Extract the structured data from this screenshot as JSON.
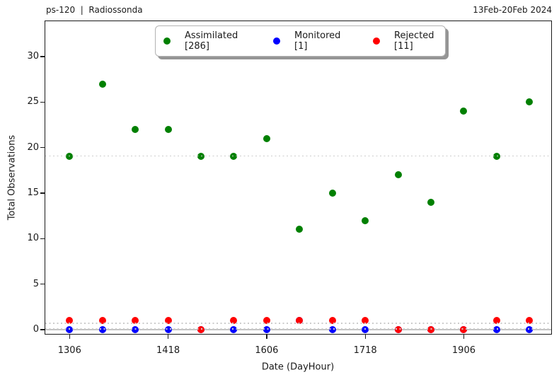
{
  "header": {
    "left_title": "ps-120  |  Radiossonda",
    "right_title": "13Feb-20Feb 2024"
  },
  "axes": {
    "ylabel": "Total Observations",
    "xlabel": "Date (DayHour)",
    "y_ticks": [
      0,
      5,
      10,
      15,
      20,
      25,
      30
    ],
    "x_tick_labels": [
      "1306",
      "1418",
      "1606",
      "1718",
      "1906"
    ],
    "x_tick_indices": [
      0,
      3,
      6,
      9,
      12
    ]
  },
  "legend": {
    "items": [
      {
        "label": "Assimilated",
        "count": "[286]",
        "color": "#008000"
      },
      {
        "label": "Monitored",
        "count": "[1]",
        "color": "#0000ff"
      },
      {
        "label": "Rejected",
        "count": "[11]",
        "color": "#ff0000"
      }
    ]
  },
  "chart_data": {
    "type": "scatter",
    "title": "ps-120 | Radiossonda",
    "subtitle_right": "13Feb-20Feb 2024",
    "xlabel": "Date (DayHour)",
    "ylabel": "Total Observations",
    "n_points": 15,
    "x_tick_labels": [
      "1306",
      "1418",
      "1606",
      "1718",
      "1906"
    ],
    "x_tick_indices": [
      0,
      3,
      6,
      9,
      12
    ],
    "ylim": [
      -0.5,
      34
    ],
    "grid": false,
    "legend_position": "upper center",
    "series": [
      {
        "name": "Assimilated",
        "total": 286,
        "color": "#008000",
        "values": [
          19,
          27,
          22,
          22,
          19,
          19,
          21,
          11,
          15,
          12,
          17,
          14,
          24,
          19,
          25
        ]
      },
      {
        "name": "Monitored",
        "total": 1,
        "color": "#0000ff",
        "values": [
          0,
          0,
          0,
          0,
          0,
          0,
          0,
          1,
          0,
          0,
          0,
          0,
          0,
          0,
          0
        ]
      },
      {
        "name": "Rejected",
        "total": 11,
        "color": "#ff0000",
        "values": [
          1,
          1,
          1,
          1,
          0,
          1,
          1,
          1,
          1,
          1,
          0,
          0,
          0,
          1,
          1
        ]
      }
    ],
    "reference_lines": [
      {
        "y": 0,
        "style": "solid",
        "color": "#c3c3c3",
        "label": "zero-line"
      },
      {
        "y": 19.07,
        "style": "dotted",
        "color": "#cccccc",
        "label": "assimilated-mean"
      },
      {
        "y": 0.73,
        "style": "dotted",
        "color": "#cccccc",
        "label": "rejected-mean"
      },
      {
        "y": 0.07,
        "style": "dotted",
        "color": "#cccccc",
        "label": "monitored-mean"
      }
    ]
  }
}
